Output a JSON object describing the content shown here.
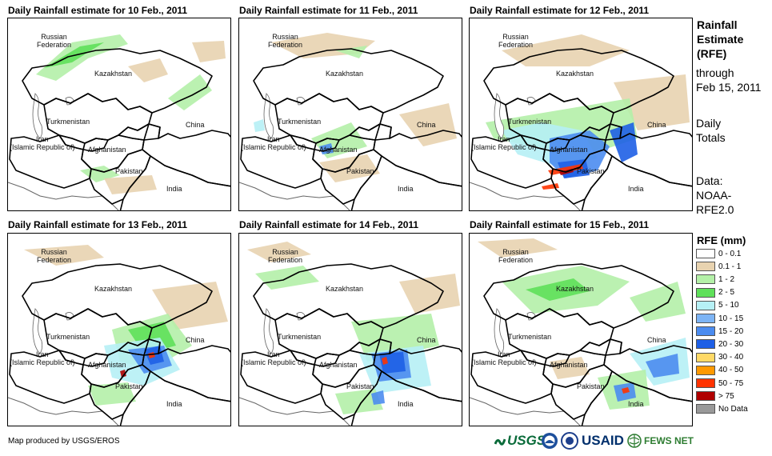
{
  "panels": [
    {
      "title": "Daily Rainfall estimate for 10 Feb., 2011",
      "date": "10 Feb., 2011",
      "intensity": "light-north"
    },
    {
      "title": "Daily Rainfall estimate for 11 Feb., 2011",
      "date": "11 Feb., 2011",
      "intensity": "light-central"
    },
    {
      "title": "Daily Rainfall estimate for 12 Feb., 2011",
      "date": "12 Feb., 2011",
      "intensity": "heavy-afghanistan"
    },
    {
      "title": "Daily Rainfall estimate for 13 Feb., 2011",
      "date": "13 Feb., 2011",
      "intensity": "heavy-east"
    },
    {
      "title": "Daily Rainfall estimate for 14 Feb., 2011",
      "date": "14 Feb., 2011",
      "intensity": "heavy-kashmir"
    },
    {
      "title": "Daily Rainfall estimate for 15 Feb., 2011",
      "date": "15 Feb., 2011",
      "intensity": "heavy-southeast"
    }
  ],
  "map_labels": {
    "russia_line1": "Russian",
    "russia_line2": "Federation",
    "kazakhstan": "Kazakhstan",
    "turkmenistan": "Turkmenistan",
    "iran_line1": "Iran",
    "iran_line2": "(Islamic Republic of)",
    "afghanistan": "Afghanistan",
    "pakistan": "Pakistan",
    "china": "China",
    "india": "India"
  },
  "sidebar": {
    "title_line1": "Rainfall",
    "title_line2": "Estimate",
    "title_line3": "(RFE)",
    "through_line1": "through",
    "through_line2": "Feb 15, 2011",
    "totals_line1": "Daily",
    "totals_line2": "Totals",
    "data_line1": "Data:",
    "data_line2": "NOAA-",
    "data_line3": "RFE2.0"
  },
  "legend": {
    "title": "RFE (mm)",
    "items": [
      {
        "label": "0 - 0.1",
        "color": "#ffffff"
      },
      {
        "label": "0.1 - 1",
        "color": "#e8d3b0"
      },
      {
        "label": "1 - 2",
        "color": "#b4f0a8"
      },
      {
        "label": "2 - 5",
        "color": "#5fe05a"
      },
      {
        "label": "5 - 10",
        "color": "#b6f0f5"
      },
      {
        "label": "10 - 15",
        "color": "#7db4f5"
      },
      {
        "label": "15 - 20",
        "color": "#4b8cf0"
      },
      {
        "label": "20 - 30",
        "color": "#1e5fe6"
      },
      {
        "label": "30 - 40",
        "color": "#ffd966"
      },
      {
        "label": "40 - 50",
        "color": "#ff9900"
      },
      {
        "label": "50 - 75",
        "color": "#ff3300"
      },
      {
        "label": "> 75",
        "color": "#b00000"
      },
      {
        "label": "No Data",
        "color": "#999999"
      }
    ]
  },
  "footer": {
    "credit": "Map produced by USGS/EROS",
    "logo_usgs": "USGS",
    "logo_usaid": "USAID",
    "logo_fewsnet": "FEWS NET"
  },
  "colors": {
    "tan": "#e8d3b0",
    "lightgreen": "#b4f0a8",
    "green": "#5fe05a",
    "lightblue": "#b6f0f5",
    "blue": "#4b8cf0",
    "darkblue": "#1e5fe6",
    "red": "#ff3300",
    "darkred": "#b00000",
    "border": "#000000",
    "outerborder": "#666666"
  }
}
